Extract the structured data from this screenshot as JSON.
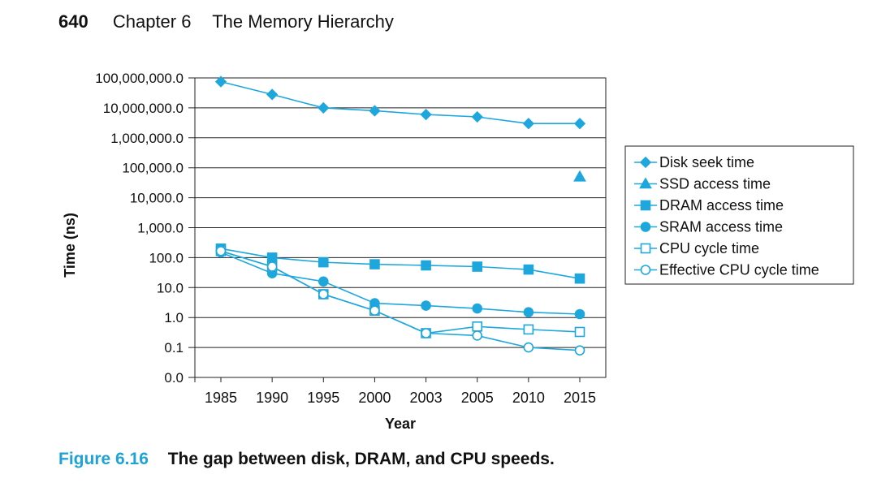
{
  "header": {
    "page_number": "640",
    "chapter": "Chapter 6",
    "title": "The Memory Hierarchy"
  },
  "caption": {
    "figure": "Figure 6.16",
    "text": "The gap between disk, DRAM, and CPU speeds."
  },
  "colors": {
    "series": "#1ea7dd",
    "grid": "#222222",
    "accent": "#1fa3d6"
  },
  "chart_data": {
    "type": "line",
    "title": "",
    "xlabel": "Year",
    "ylabel": "Time (ns)",
    "yscale": "log",
    "categories": [
      "1985",
      "1990",
      "1995",
      "2000",
      "2003",
      "2005",
      "2010",
      "2015"
    ],
    "ytick_labels": [
      "0.0",
      "0.1",
      "1.0",
      "10.0",
      "100.0",
      "1,000.0",
      "10,000.0",
      "100,000.0",
      "1,000,000.0",
      "10,000,000.0",
      "100,000,000.0"
    ],
    "ylim_exponent": [
      -2,
      8
    ],
    "legend_position": "right",
    "series": [
      {
        "name": "Disk seek time",
        "marker": "diamond",
        "filled": true,
        "values": [
          75000000,
          28000000,
          10000000,
          8000000,
          6000000,
          5000000,
          3000000,
          3000000
        ]
      },
      {
        "name": "SSD access time",
        "marker": "triangle",
        "filled": true,
        "values": [
          null,
          null,
          null,
          null,
          null,
          null,
          null,
          50000
        ]
      },
      {
        "name": "DRAM access time",
        "marker": "square",
        "filled": true,
        "values": [
          200,
          100,
          70,
          60,
          55,
          50,
          40,
          20
        ]
      },
      {
        "name": "SRAM access time",
        "marker": "circle",
        "filled": true,
        "values": [
          150,
          30,
          16,
          3,
          2.5,
          2,
          1.5,
          1.3
        ]
      },
      {
        "name": "CPU cycle time",
        "marker": "square",
        "filled": false,
        "values": [
          166,
          50,
          6,
          1.7,
          0.3,
          0.5,
          0.4,
          0.33
        ]
      },
      {
        "name": "Effective CPU cycle time",
        "marker": "circle",
        "filled": false,
        "values": [
          166,
          50,
          6,
          1.7,
          0.3,
          0.25,
          0.1,
          0.08
        ]
      }
    ]
  }
}
